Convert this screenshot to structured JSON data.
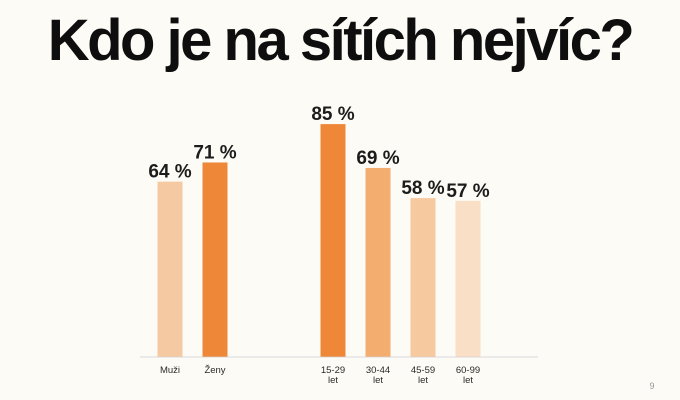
{
  "title": "Kdo je na sítích nejvíc?",
  "page_number": "9",
  "chart_data": {
    "type": "bar",
    "title": "Kdo je na sítích nejvíc?",
    "xlabel": "",
    "ylabel": "",
    "ylim": [
      0,
      100
    ],
    "grid": false,
    "legend": "none",
    "unit": "%",
    "bars": [
      {
        "group": "gender",
        "lines": [
          "Muži"
        ],
        "value": 64,
        "color": "#f5c9a1"
      },
      {
        "group": "gender",
        "lines": [
          "Ženy"
        ],
        "value": 71,
        "color": "#ee8838"
      },
      {
        "group": "age",
        "lines": [
          "15-29",
          "let"
        ],
        "value": 85,
        "color": "#ee8838"
      },
      {
        "group": "age",
        "lines": [
          "30-44",
          "let"
        ],
        "value": 69,
        "color": "#f3ad6e"
      },
      {
        "group": "age",
        "lines": [
          "45-59",
          "let"
        ],
        "value": 58,
        "color": "#f6c99f"
      },
      {
        "group": "age",
        "lines": [
          "60-99",
          "let"
        ],
        "value": 57,
        "color": "#f9dfc5"
      }
    ],
    "value_labels": [
      "64 %",
      "71 %",
      "85 %",
      "69 %",
      "58 %",
      "57 %"
    ]
  }
}
